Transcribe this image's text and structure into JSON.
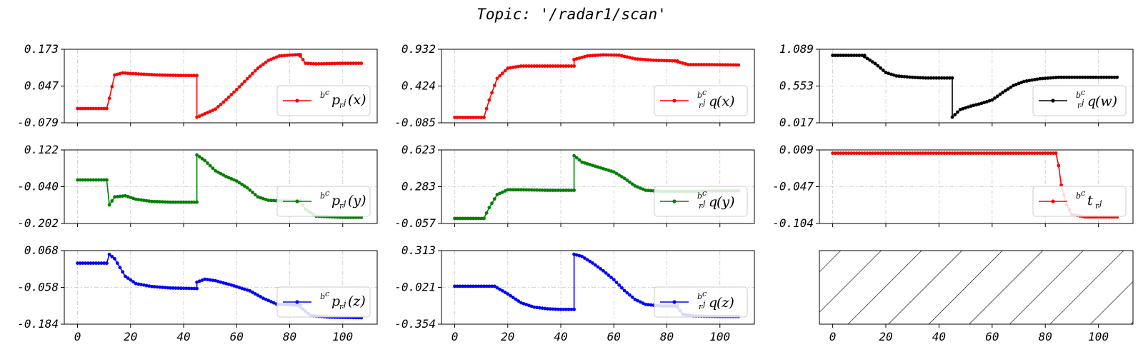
{
  "title": "Topic: '/radar1/scan'",
  "colors": {
    "red": "#ff0000",
    "green": "#008000",
    "blue": "#0000ff",
    "black": "#000000"
  },
  "chart_data": [
    {
      "id": "px",
      "type": "line",
      "row": 0,
      "col": 0,
      "color": "#ff0000",
      "legend": {
        "pre": "b",
        "pre_sub": "c",
        "main": "p",
        "sub": "r",
        "sub_sup": "j",
        "arg": "(x)"
      },
      "yticks": [
        "0.173",
        "0.047",
        "-0.079"
      ],
      "ylim": [
        -0.079,
        0.173
      ],
      "series": [
        {
          "segments": [
            [
              [
                0,
                -0.03
              ],
              [
                11,
                -0.03
              ]
            ],
            [
              [
                11,
                -0.03
              ],
              [
                12,
                0.005
              ],
              [
                14,
                0.085
              ],
              [
                17,
                0.092
              ],
              [
                20,
                0.09
              ],
              [
                30,
                0.085
              ],
              [
                40,
                0.083
              ],
              [
                45,
                0.083
              ]
            ],
            [
              [
                45,
                -0.06
              ],
              [
                48,
                -0.048
              ],
              [
                52,
                -0.032
              ],
              [
                56,
                0.0
              ],
              [
                60,
                0.035
              ],
              [
                64,
                0.072
              ],
              [
                68,
                0.108
              ],
              [
                72,
                0.135
              ],
              [
                76,
                0.15
              ],
              [
                80,
                0.153
              ],
              [
                84,
                0.155
              ]
            ],
            [
              [
                84,
                0.15
              ],
              [
                86,
                0.125
              ],
              [
                90,
                0.123
              ],
              [
                100,
                0.125
              ],
              [
                107,
                0.125
              ]
            ]
          ]
        }
      ]
    },
    {
      "id": "qx",
      "type": "line",
      "row": 0,
      "col": 1,
      "color": "#ff0000",
      "legend": {
        "pre": "b",
        "pre_sub": "c",
        "main": "q",
        "sub": "r",
        "sub_sup": "j",
        "arg": "(x)",
        "stack": true
      },
      "yticks": [
        "0.932",
        "0.424",
        "-0.085"
      ],
      "ylim": [
        -0.085,
        0.932
      ],
      "series": [
        {
          "segments": [
            [
              [
                0,
                -0.01
              ],
              [
                11,
                -0.01
              ]
            ],
            [
              [
                11,
                -0.01
              ],
              [
                13,
                0.23
              ],
              [
                16,
                0.53
              ],
              [
                20,
                0.67
              ],
              [
                25,
                0.7
              ],
              [
                35,
                0.7
              ],
              [
                45,
                0.7
              ]
            ],
            [
              [
                45,
                0.79
              ],
              [
                50,
                0.84
              ],
              [
                56,
                0.855
              ],
              [
                62,
                0.85
              ],
              [
                68,
                0.8
              ],
              [
                75,
                0.78
              ],
              [
                84,
                0.77
              ]
            ],
            [
              [
                84,
                0.76
              ],
              [
                88,
                0.72
              ],
              [
                95,
                0.72
              ],
              [
                107,
                0.715
              ]
            ]
          ]
        }
      ]
    },
    {
      "id": "qw",
      "type": "line",
      "row": 0,
      "col": 2,
      "color": "#000000",
      "legend": {
        "pre": "b",
        "pre_sub": "c",
        "main": "q",
        "sub": "r",
        "sub_sup": "j",
        "arg": "(w)",
        "stack": true
      },
      "yticks": [
        "1.089",
        "0.553",
        "0.017"
      ],
      "ylim": [
        0.017,
        1.089
      ],
      "series": [
        {
          "segments": [
            [
              [
                0,
                1.0
              ],
              [
                12,
                1.0
              ]
            ],
            [
              [
                12,
                0.98
              ],
              [
                16,
                0.88
              ],
              [
                20,
                0.75
              ],
              [
                24,
                0.7
              ],
              [
                30,
                0.68
              ],
              [
                35,
                0.67
              ],
              [
                45,
                0.67
              ]
            ],
            [
              [
                45,
                0.1
              ],
              [
                48,
                0.21
              ],
              [
                52,
                0.26
              ],
              [
                56,
                0.3
              ],
              [
                60,
                0.35
              ],
              [
                64,
                0.46
              ],
              [
                68,
                0.56
              ],
              [
                72,
                0.62
              ],
              [
                78,
                0.66
              ],
              [
                85,
                0.68
              ],
              [
                100,
                0.68
              ],
              [
                107,
                0.68
              ]
            ]
          ]
        }
      ]
    },
    {
      "id": "py",
      "type": "line",
      "row": 1,
      "col": 0,
      "color": "#008000",
      "legend": {
        "pre": "b",
        "pre_sub": "c",
        "main": "p",
        "sub": "r",
        "sub_sup": "j",
        "arg": "(y)"
      },
      "yticks": [
        "0.122",
        "-0.040",
        "-0.202"
      ],
      "ylim": [
        -0.202,
        0.122
      ],
      "series": [
        {
          "segments": [
            [
              [
                0,
                -0.01
              ],
              [
                11,
                -0.01
              ]
            ],
            [
              [
                11,
                -0.01
              ],
              [
                12,
                -0.12
              ],
              [
                14,
                -0.085
              ],
              [
                18,
                -0.08
              ],
              [
                22,
                -0.095
              ],
              [
                28,
                -0.105
              ],
              [
                35,
                -0.108
              ],
              [
                45,
                -0.108
              ]
            ],
            [
              [
                45,
                0.1
              ],
              [
                48,
                0.075
              ],
              [
                52,
                0.03
              ],
              [
                56,
                0.005
              ],
              [
                60,
                -0.015
              ],
              [
                64,
                -0.045
              ],
              [
                68,
                -0.085
              ],
              [
                72,
                -0.1
              ],
              [
                78,
                -0.103
              ],
              [
                84,
                -0.103
              ]
            ],
            [
              [
                84,
                -0.103
              ],
              [
                86,
                -0.14
              ],
              [
                90,
                -0.17
              ],
              [
                100,
                -0.175
              ],
              [
                107,
                -0.175
              ]
            ]
          ]
        }
      ]
    },
    {
      "id": "qy",
      "type": "line",
      "row": 1,
      "col": 1,
      "color": "#008000",
      "legend": {
        "pre": "b",
        "pre_sub": "c",
        "main": "q",
        "sub": "r",
        "sub_sup": "j",
        "arg": "(y)",
        "stack": true
      },
      "yticks": [
        "0.623",
        "0.283",
        "-0.057"
      ],
      "ylim": [
        -0.057,
        0.623
      ],
      "series": [
        {
          "segments": [
            [
              [
                0,
                -0.01
              ],
              [
                11,
                -0.01
              ]
            ],
            [
              [
                11,
                -0.01
              ],
              [
                13,
                0.09
              ],
              [
                16,
                0.21
              ],
              [
                20,
                0.255
              ],
              [
                25,
                0.255
              ],
              [
                35,
                0.25
              ],
              [
                45,
                0.25
              ]
            ],
            [
              [
                45,
                0.57
              ],
              [
                48,
                0.51
              ],
              [
                52,
                0.48
              ],
              [
                56,
                0.45
              ],
              [
                60,
                0.42
              ],
              [
                64,
                0.36
              ],
              [
                68,
                0.29
              ],
              [
                72,
                0.25
              ],
              [
                78,
                0.24
              ],
              [
                90,
                0.24
              ],
              [
                100,
                0.245
              ],
              [
                107,
                0.245
              ]
            ]
          ]
        }
      ]
    },
    {
      "id": "t",
      "type": "line",
      "row": 1,
      "col": 2,
      "color": "#ff0000",
      "legend": {
        "pre": "b",
        "pre_sub": "c",
        "main": "t",
        "sub": "r",
        "sub_sup": "j",
        "arg": ""
      },
      "yticks": [
        "0.009",
        "-0.047",
        "-0.104"
      ],
      "ylim": [
        -0.104,
        0.009
      ],
      "series": [
        {
          "segments": [
            [
              [
                0,
                0.004
              ],
              [
                40,
                0.004
              ],
              [
                84,
                0.004
              ]
            ],
            [
              [
                84,
                0.004
              ],
              [
                85,
                -0.015
              ],
              [
                86,
                -0.045
              ],
              [
                88,
                -0.075
              ],
              [
                90,
                -0.09
              ],
              [
                95,
                -0.094
              ],
              [
                107,
                -0.094
              ]
            ]
          ]
        }
      ]
    },
    {
      "id": "pz",
      "type": "line",
      "row": 2,
      "col": 0,
      "color": "#0000ff",
      "legend": {
        "pre": "b",
        "pre_sub": "c",
        "main": "p",
        "sub": "r",
        "sub_sup": "j",
        "arg": "(z)"
      },
      "yticks": [
        "0.068",
        "-0.058",
        "-0.184"
      ],
      "ylim": [
        -0.184,
        0.068
      ],
      "series": [
        {
          "segments": [
            [
              [
                0,
                0.025
              ],
              [
                11,
                0.025
              ]
            ],
            [
              [
                11,
                0.025
              ],
              [
                12,
                0.055
              ],
              [
                14,
                0.04
              ],
              [
                18,
                -0.02
              ],
              [
                22,
                -0.045
              ],
              [
                28,
                -0.055
              ],
              [
                35,
                -0.06
              ],
              [
                45,
                -0.062
              ]
            ],
            [
              [
                45,
                -0.04
              ],
              [
                48,
                -0.03
              ],
              [
                52,
                -0.035
              ],
              [
                58,
                -0.05
              ],
              [
                65,
                -0.07
              ],
              [
                70,
                -0.095
              ],
              [
                75,
                -0.115
              ],
              [
                84,
                -0.12
              ]
            ],
            [
              [
                84,
                -0.125
              ],
              [
                88,
                -0.155
              ],
              [
                95,
                -0.16
              ],
              [
                107,
                -0.162
              ]
            ]
          ]
        }
      ]
    },
    {
      "id": "qz",
      "type": "line",
      "row": 2,
      "col": 1,
      "color": "#0000ff",
      "legend": {
        "pre": "b",
        "pre_sub": "c",
        "main": "q",
        "sub": "r",
        "sub_sup": "j",
        "arg": "(z)",
        "stack": true
      },
      "yticks": [
        "0.313",
        "-0.021",
        "-0.354"
      ],
      "ylim": [
        -0.354,
        0.313
      ],
      "series": [
        {
          "segments": [
            [
              [
                0,
                -0.01
              ],
              [
                15,
                -0.01
              ]
            ],
            [
              [
                15,
                -0.01
              ],
              [
                20,
                -0.08
              ],
              [
                25,
                -0.16
              ],
              [
                30,
                -0.2
              ],
              [
                35,
                -0.215
              ],
              [
                40,
                -0.22
              ],
              [
                45,
                -0.22
              ]
            ],
            [
              [
                45,
                0.28
              ],
              [
                48,
                0.26
              ],
              [
                52,
                0.2
              ],
              [
                56,
                0.13
              ],
              [
                60,
                0.05
              ],
              [
                64,
                -0.05
              ],
              [
                68,
                -0.13
              ],
              [
                72,
                -0.175
              ],
              [
                78,
                -0.19
              ],
              [
                84,
                -0.19
              ]
            ],
            [
              [
                84,
                -0.2
              ],
              [
                86,
                -0.265
              ],
              [
                90,
                -0.28
              ],
              [
                100,
                -0.285
              ],
              [
                107,
                -0.285
              ]
            ]
          ]
        }
      ]
    },
    {
      "id": "empty",
      "type": "empty",
      "row": 2,
      "col": 2,
      "hatched": true
    }
  ],
  "xaxis": {
    "ticks": [
      0,
      20,
      40,
      60,
      80,
      100
    ],
    "xlim": [
      -5,
      113
    ]
  }
}
